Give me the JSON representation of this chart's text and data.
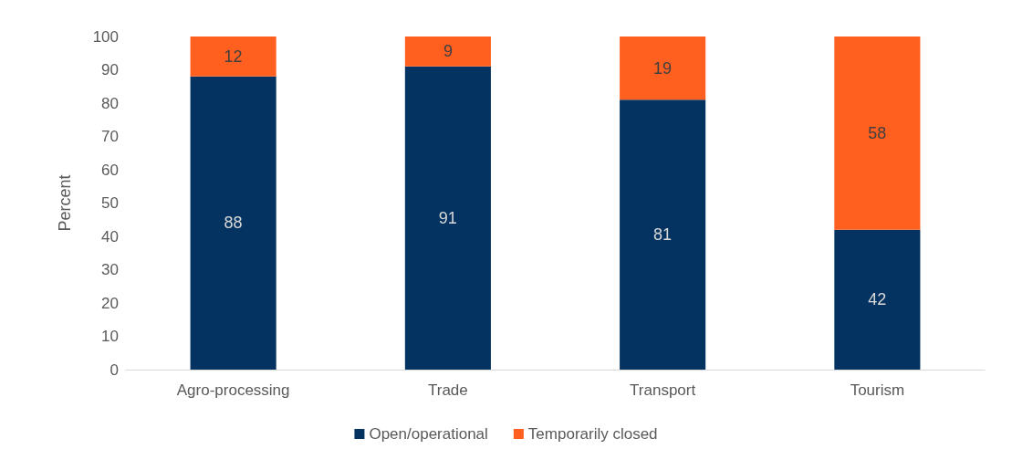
{
  "chart_data": {
    "type": "bar",
    "stacked": true,
    "ylabel": "Percent",
    "categories": [
      "Agro-processing",
      "Trade",
      "Transport",
      "Tourism"
    ],
    "series": [
      {
        "name": "Open/operational",
        "color": "#053361",
        "values": [
          88,
          91,
          81,
          42
        ]
      },
      {
        "name": "Temporarily closed",
        "color": "#ff5f1f",
        "values": [
          12,
          9,
          19,
          58
        ]
      }
    ],
    "ylim": [
      0,
      100
    ],
    "yticks": [
      0,
      10,
      20,
      30,
      40,
      50,
      60,
      70,
      80,
      90,
      100
    ],
    "grid": false,
    "legend": "bottom",
    "data_labels": true
  }
}
